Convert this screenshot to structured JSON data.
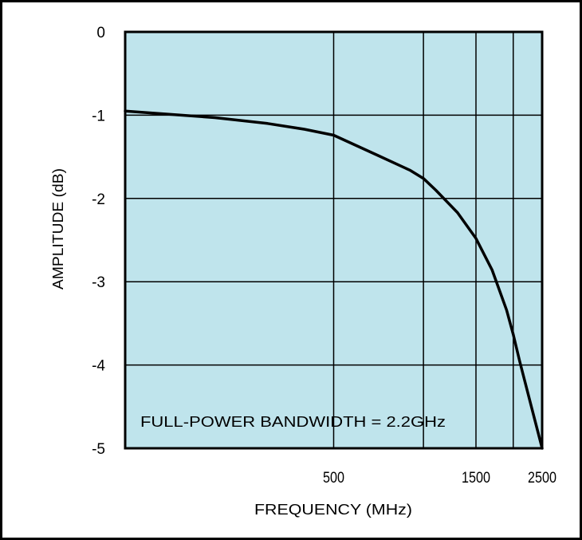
{
  "chart_data": {
    "type": "line",
    "title": "",
    "xlabel": "FREQUENCY (MHz)",
    "ylabel": "AMPLITUDE (dB)",
    "x_scale": "log",
    "xlim": [
      100,
      2500
    ],
    "ylim": [
      -5,
      0
    ],
    "x_ticks": [
      {
        "value": 500,
        "label": "500"
      },
      {
        "value": 1500,
        "label": "1500"
      },
      {
        "value": 2500,
        "label": "2500"
      }
    ],
    "x_gridlines": [
      500,
      1000,
      1500,
      2000,
      2500
    ],
    "y_ticks": [
      {
        "value": 0,
        "label": "0"
      },
      {
        "value": -1,
        "label": "-1"
      },
      {
        "value": -2,
        "label": "-2"
      },
      {
        "value": -3,
        "label": "-3"
      },
      {
        "value": -4,
        "label": "-4"
      },
      {
        "value": -5,
        "label": "-5"
      }
    ],
    "grid": true,
    "annotation": "FULL-POWER BANDWIDTH = 2.2GHz",
    "series": [
      {
        "x": [
          100,
          200,
          300,
          400,
          500,
          700,
          900,
          1000,
          1100,
          1300,
          1500,
          1700,
          1900,
          2000,
          2100,
          2300,
          2500
        ],
        "y": [
          -0.95,
          -1.03,
          -1.1,
          -1.17,
          -1.24,
          -1.48,
          -1.66,
          -1.76,
          -1.9,
          -2.17,
          -2.48,
          -2.86,
          -3.34,
          -3.63,
          -3.95,
          -4.5,
          -5.0
        ]
      }
    ],
    "colors": {
      "plot_bg": "#bfe4ec",
      "line": "#000000",
      "grid": "#000000"
    }
  }
}
